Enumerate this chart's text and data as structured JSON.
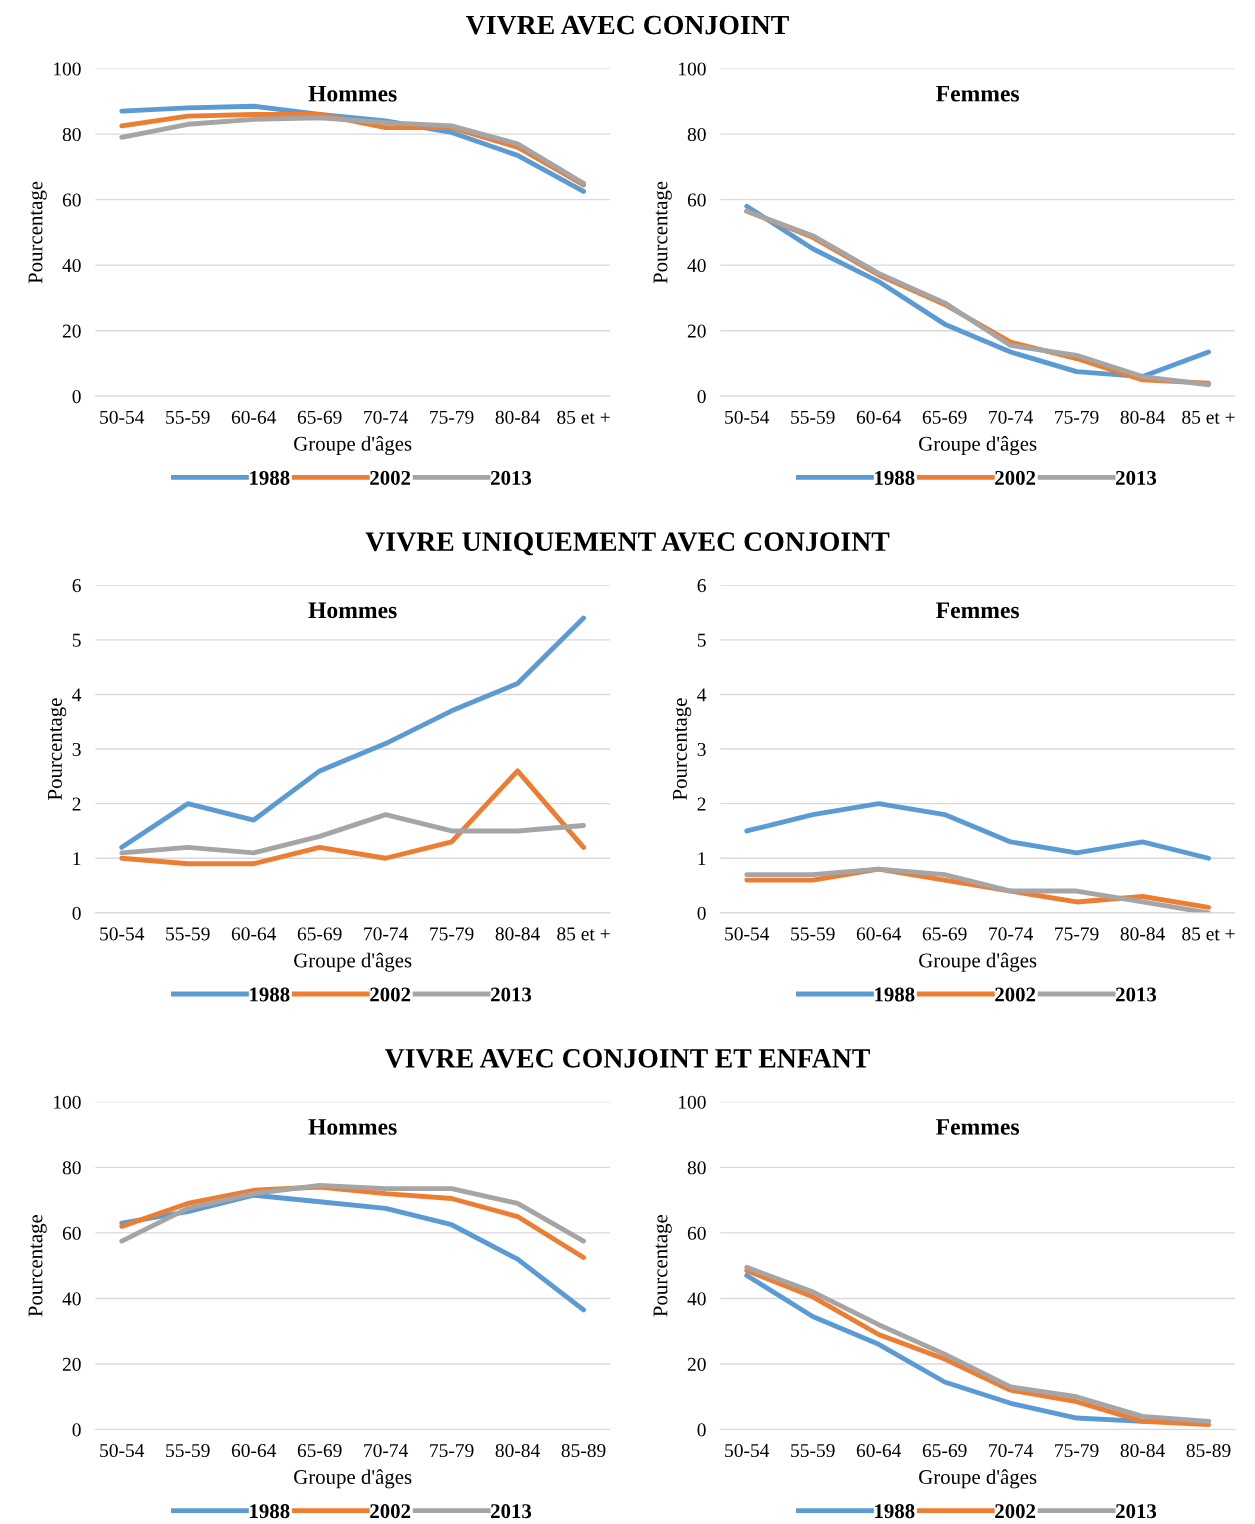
{
  "chart_data": [
    {
      "type": "line",
      "title": "Hommes",
      "annotations": [
        "VIVRE AVEC CONJOINT"
      ],
      "xlabel": "Groupe d'âges",
      "ylabel": "Pourcentage",
      "categories": [
        "50-54",
        "55-59",
        "60-64",
        "65-69",
        "70-74",
        "75-79",
        "80-84",
        "85 et +"
      ],
      "ylim": [
        0,
        100
      ],
      "yticks": [
        0,
        20,
        40,
        60,
        80,
        100
      ],
      "grid": "y",
      "legend": "bottom",
      "series": [
        {
          "name": "1988",
          "color": "#5b9bd5",
          "values": [
            87,
            88,
            88.5,
            86,
            84,
            80.5,
            73.5,
            62.5
          ]
        },
        {
          "name": "2002",
          "color": "#ed7d31",
          "values": [
            82.5,
            85.5,
            86,
            86,
            82,
            82,
            76,
            64.5
          ]
        },
        {
          "name": "2013",
          "color": "#a5a5a5",
          "values": [
            79,
            83,
            84.5,
            85,
            83.5,
            82.5,
            77,
            65
          ]
        }
      ]
    },
    {
      "type": "line",
      "title": "Femmes",
      "xlabel": "Groupe d'âges",
      "ylabel": "Pourcentage",
      "categories": [
        "50-54",
        "55-59",
        "60-64",
        "65-69",
        "70-74",
        "75-79",
        "80-84",
        "85 et +"
      ],
      "ylim": [
        0,
        100
      ],
      "yticks": [
        0,
        20,
        40,
        60,
        80,
        100
      ],
      "grid": "y",
      "legend": "bottom",
      "series": [
        {
          "name": "1988",
          "color": "#5b9bd5",
          "values": [
            58,
            45,
            35,
            22,
            13.5,
            7.5,
            6,
            13.5
          ]
        },
        {
          "name": "2002",
          "color": "#ed7d31",
          "values": [
            56.5,
            48.5,
            37,
            28,
            16.5,
            11.5,
            5,
            4
          ]
        },
        {
          "name": "2013",
          "color": "#a5a5a5",
          "values": [
            56.5,
            49,
            37.5,
            28.5,
            15.5,
            12.5,
            6,
            3.5
          ]
        }
      ]
    },
    {
      "type": "line",
      "title": "Hommes",
      "annotations": [
        "VIVRE UNIQUEMENT AVEC CONJOINT"
      ],
      "xlabel": "Groupe d'âges",
      "ylabel": "Pourcentage",
      "categories": [
        "50-54",
        "55-59",
        "60-64",
        "65-69",
        "70-74",
        "75-79",
        "80-84",
        "85 et +"
      ],
      "ylim": [
        0,
        6
      ],
      "yticks": [
        0,
        1,
        2,
        3,
        4,
        5,
        6
      ],
      "grid": "y",
      "legend": "bottom",
      "series": [
        {
          "name": "1988",
          "color": "#5b9bd5",
          "values": [
            1.2,
            2.0,
            1.7,
            2.6,
            3.1,
            3.7,
            4.2,
            5.4
          ]
        },
        {
          "name": "2002",
          "color": "#ed7d31",
          "values": [
            1.0,
            0.9,
            0.9,
            1.2,
            1.0,
            1.3,
            2.6,
            1.2
          ]
        },
        {
          "name": "2013",
          "color": "#a5a5a5",
          "values": [
            1.1,
            1.2,
            1.1,
            1.4,
            1.8,
            1.5,
            1.5,
            1.6
          ]
        }
      ]
    },
    {
      "type": "line",
      "title": "Femmes",
      "xlabel": "Groupe d'âges",
      "ylabel": "Pourcentage",
      "categories": [
        "50-54",
        "55-59",
        "60-64",
        "65-69",
        "70-74",
        "75-79",
        "80-84",
        "85 et +"
      ],
      "ylim": [
        0,
        6
      ],
      "yticks": [
        0,
        1,
        2,
        3,
        4,
        5,
        6
      ],
      "grid": "y",
      "legend": "bottom",
      "series": [
        {
          "name": "1988",
          "color": "#5b9bd5",
          "values": [
            1.5,
            1.8,
            2.0,
            1.8,
            1.3,
            1.1,
            1.3,
            1.0
          ]
        },
        {
          "name": "2002",
          "color": "#ed7d31",
          "values": [
            0.6,
            0.6,
            0.8,
            0.6,
            0.4,
            0.2,
            0.3,
            0.1
          ]
        },
        {
          "name": "2013",
          "color": "#a5a5a5",
          "values": [
            0.7,
            0.7,
            0.8,
            0.7,
            0.4,
            0.4,
            0.2,
            0.0
          ]
        }
      ]
    },
    {
      "type": "line",
      "title": "Hommes",
      "annotations": [
        "VIVRE AVEC CONJOINT ET ENFANT"
      ],
      "xlabel": "Groupe d'âges",
      "ylabel": "Pourcentage",
      "categories": [
        "50-54",
        "55-59",
        "60-64",
        "65-69",
        "70-74",
        "75-79",
        "80-84",
        "85-89"
      ],
      "ylim": [
        0,
        100
      ],
      "yticks": [
        0,
        20,
        40,
        60,
        80,
        100
      ],
      "grid": "y",
      "legend": "bottom",
      "series": [
        {
          "name": "1988",
          "color": "#5b9bd5",
          "values": [
            63,
            66.5,
            71.5,
            69.5,
            67.5,
            62.5,
            52,
            36.5
          ]
        },
        {
          "name": "2002",
          "color": "#ed7d31",
          "values": [
            62,
            69,
            73,
            74,
            72,
            70.5,
            65,
            52.5
          ]
        },
        {
          "name": "2013",
          "color": "#a5a5a5",
          "values": [
            57.5,
            67.5,
            72,
            74.5,
            73.5,
            73.5,
            69,
            57.5
          ]
        }
      ]
    },
    {
      "type": "line",
      "title": "Femmes",
      "xlabel": "Groupe d'âges",
      "ylabel": "Pourcentage",
      "categories": [
        "50-54",
        "55-59",
        "60-64",
        "65-69",
        "70-74",
        "75-79",
        "80-84",
        "85-89"
      ],
      "ylim": [
        0,
        100
      ],
      "yticks": [
        0,
        20,
        40,
        60,
        80,
        100
      ],
      "grid": "y",
      "legend": "bottom",
      "series": [
        {
          "name": "1988",
          "color": "#5b9bd5",
          "values": [
            47,
            34.5,
            26,
            14.5,
            8,
            3.5,
            2.5,
            2.5
          ]
        },
        {
          "name": "2002",
          "color": "#ed7d31",
          "values": [
            48.5,
            40.5,
            29,
            21.5,
            12,
            8.5,
            2.5,
            1.5
          ]
        },
        {
          "name": "2013",
          "color": "#a5a5a5",
          "values": [
            49.5,
            42,
            32,
            23,
            13,
            10,
            4,
            2.5
          ]
        }
      ]
    }
  ]
}
